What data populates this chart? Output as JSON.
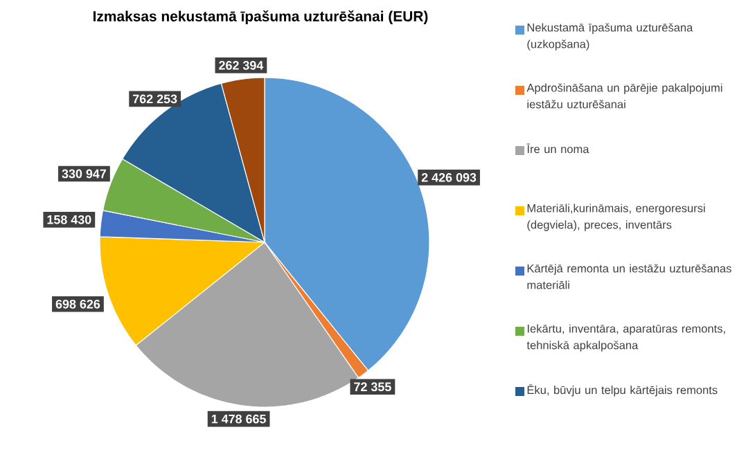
{
  "chart_data": {
    "type": "pie",
    "title": "Izmaksas nekustamā īpašuma uzturēšanai (EUR)",
    "categories": [
      "Nekustamā īpašuma uzturēšana (uzkopšana)",
      "Apdrošināšana un pārējie pakalpojumi iestāžu uzturēšanai",
      "Īre un noma",
      "Materiāli,kurināmais, energoresursi (degviela), preces, inventārs",
      "Kārtējā remonta un iestāžu uzturēšanas materiāli",
      "Iekārtu, inventāra, aparatūras remonts, tehniskā apkalpošana",
      "Ēku, būvju un telpu kārtējais remonts",
      null
    ],
    "values": [
      2426093,
      72355,
      1478665,
      698626,
      158430,
      330947,
      762253,
      262394
    ],
    "value_labels": [
      "2 426 093",
      "72 355",
      "1 478 665",
      "698 626",
      "158 430",
      "330 947",
      "762 253",
      "262 394"
    ],
    "colors": [
      "#5b9bd5",
      "#ed7d31",
      "#a5a5a5",
      "#ffc000",
      "#4472c4",
      "#70ad47",
      "#255e91",
      "#9e480e"
    ],
    "legend": "right"
  }
}
